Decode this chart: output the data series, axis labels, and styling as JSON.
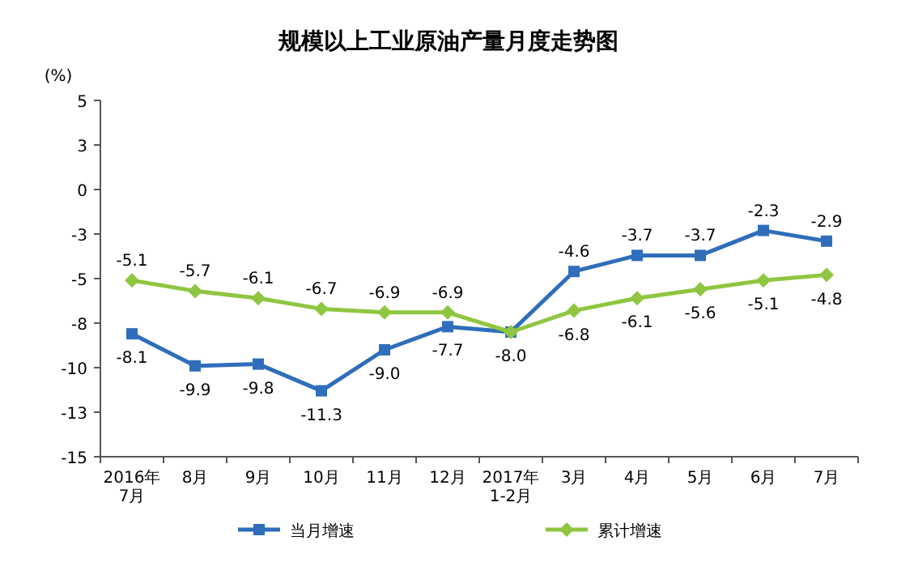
{
  "chart_data": {
    "type": "line",
    "title": "规模以上工业原油产量月度走势图",
    "ylabel": "(%)",
    "categories": [
      "2016年\n7月",
      "8月",
      "9月",
      "10月",
      "11月",
      "12月",
      "2017年\n1-2月",
      "3月",
      "4月",
      "5月",
      "6月",
      "7月"
    ],
    "series": [
      {
        "name": "当月增速",
        "color": "#2f6eba",
        "marker": "square",
        "values": [
          -8.1,
          -9.9,
          -9.8,
          -11.3,
          -9.0,
          -7.7,
          -8.0,
          -4.6,
          -3.7,
          -3.7,
          -2.3,
          -2.9
        ],
        "value_labels": [
          "-8.1",
          "-9.9",
          "-9.8",
          "-11.3",
          "-9.0",
          "-7.7",
          "-8.0",
          "-4.6",
          "-3.7",
          "-3.7",
          "-2.3",
          "-2.9"
        ]
      },
      {
        "name": "累计增速",
        "color": "#8fc641",
        "marker": "diamond",
        "values": [
          -5.1,
          -5.7,
          -6.1,
          -6.7,
          -6.9,
          -6.9,
          -8.0,
          -6.8,
          -6.1,
          -5.6,
          -5.1,
          -4.8
        ],
        "value_labels": [
          "-5.1",
          "-5.7",
          "-6.1",
          "-6.7",
          "-6.9",
          "-6.9",
          null,
          "-6.8",
          "-6.1",
          "-5.6",
          "-5.1",
          "-4.8"
        ]
      }
    ],
    "ylim": [
      -15,
      5
    ],
    "yticks": [
      5,
      {
        "value": 2.5,
        "label": "3"
      },
      0,
      {
        "value": -2.5,
        "label": "-3"
      },
      -5,
      {
        "value": -7.5,
        "label": "-8"
      },
      -10,
      {
        "value": -12.5,
        "label": "-13"
      },
      -15
    ],
    "grid": false,
    "legend": "bottom"
  }
}
